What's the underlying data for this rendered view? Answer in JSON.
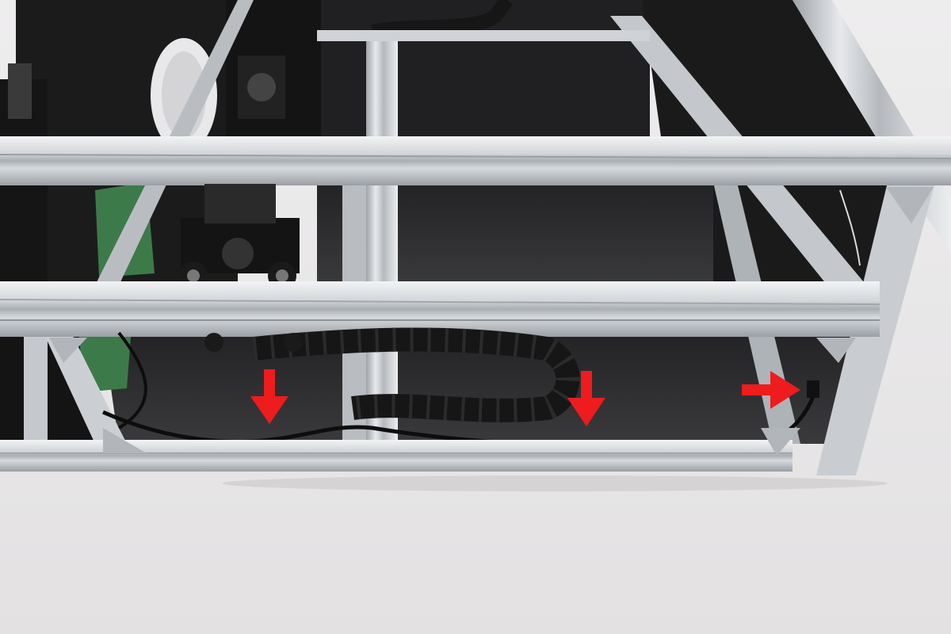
{
  "photo": {
    "subject": "aluminum-extrusion-frame-cable-routing",
    "colors": {
      "table": "#e9e7e8",
      "panel": "#1c1c1d",
      "panel_floor": "#2a2a2c",
      "aluminum": "#c8ccd0",
      "aluminum_light": "#eef0f2",
      "aluminum_dark": "#8e9398",
      "drag_chain": "#161616",
      "pcb": "#3d7a4a",
      "tube": "#0e0e0e",
      "arrow": "#ee1c1c"
    }
  },
  "annotations": {
    "arrows": [
      {
        "id": "clip-left",
        "direction": "down"
      },
      {
        "id": "clip-middle",
        "direction": "down"
      },
      {
        "id": "clip-right",
        "direction": "right"
      }
    ]
  }
}
